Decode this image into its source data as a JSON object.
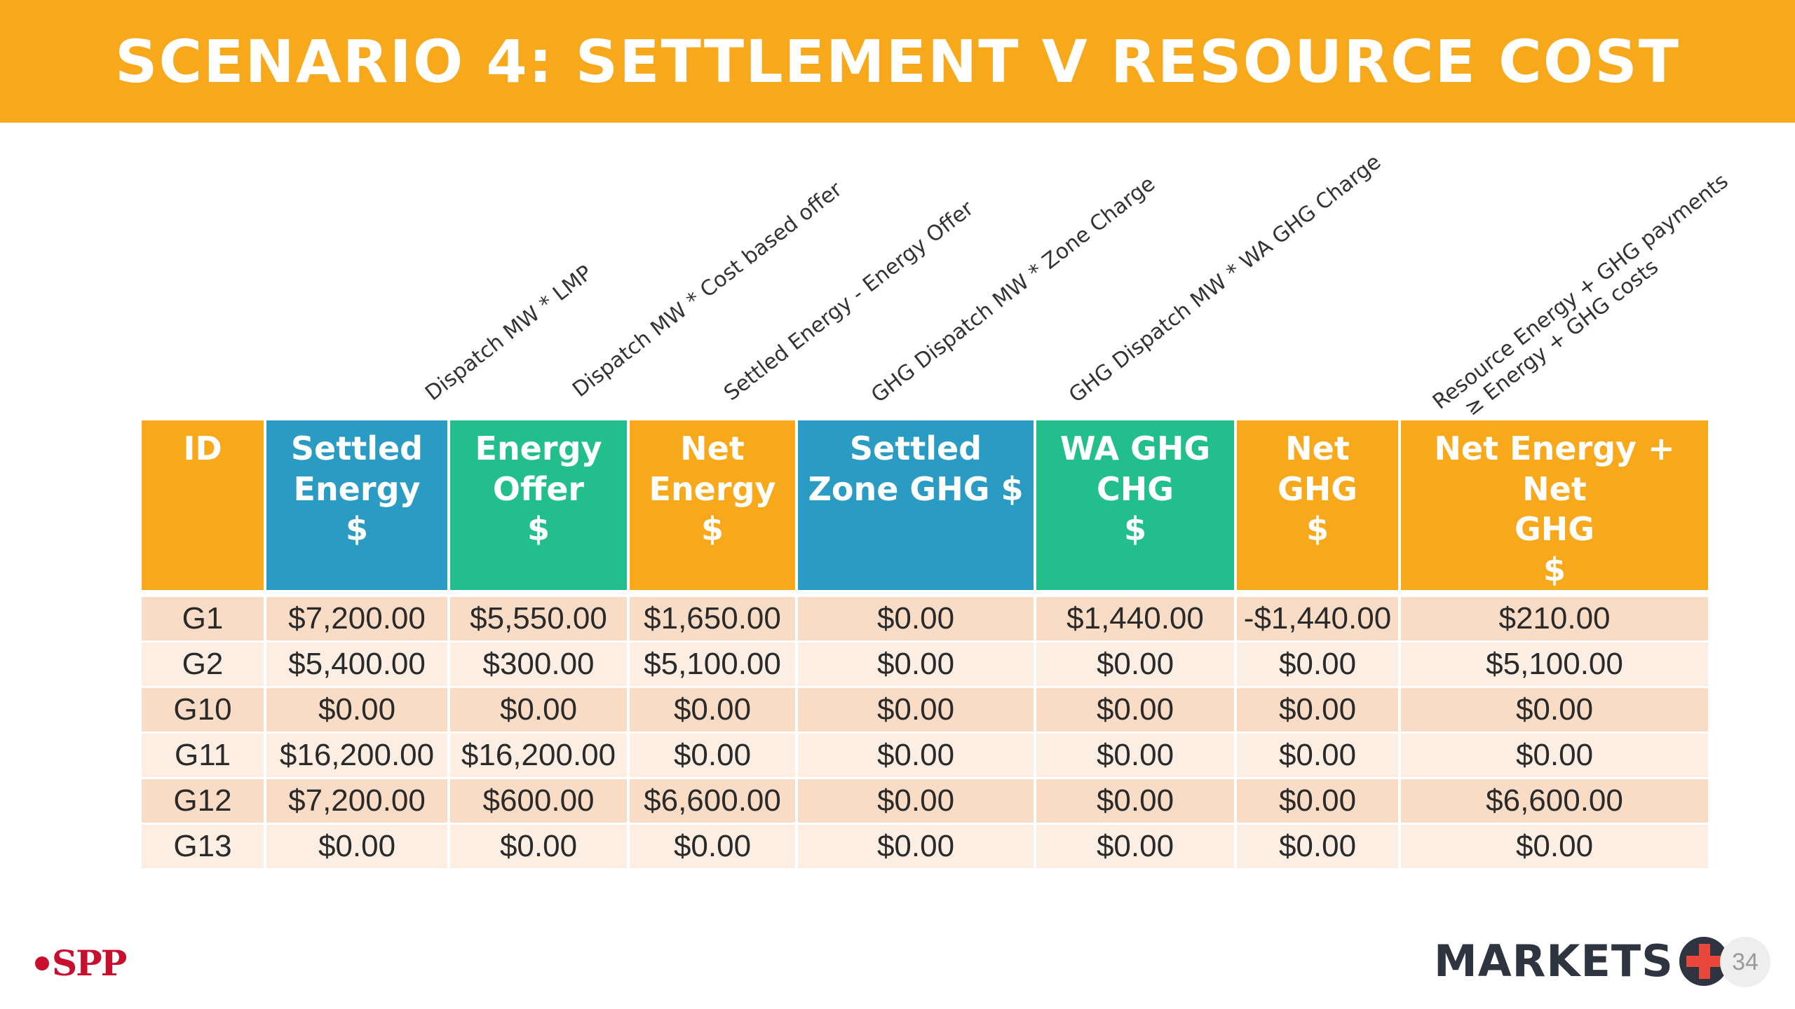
{
  "header": {
    "title": "SCENARIO 4:  SETTLEMENT V RESOURCE COST"
  },
  "formulas": {
    "settled_energy": "Dispatch MW * LMP",
    "energy_offer": "Dispatch MW * Cost based offer",
    "net_energy": "Settled Energy - Energy Offer",
    "settled_zone_ghg": "GHG Dispatch MW * Zone Charge",
    "wa_ghg_chg": "GHG Dispatch MW * WA GHG Charge",
    "net_total_line1": "Resource Energy + GHG payments",
    "net_total_line2": "≥ Energy + GHG costs"
  },
  "table": {
    "headers": [
      {
        "l1": "ID",
        "l2": "",
        "l3": "",
        "color": "#F7A81B"
      },
      {
        "l1": "Settled",
        "l2": "Energy",
        "l3": "$",
        "color": "#2A9BC2"
      },
      {
        "l1": "Energy",
        "l2": "Offer",
        "l3": "$",
        "color": "#22BF8C"
      },
      {
        "l1": "Net",
        "l2": "Energy",
        "l3": "$",
        "color": "#F7A81B"
      },
      {
        "l1": "Settled",
        "l2": "Zone GHG $",
        "l3": "",
        "color": "#2A9BC2"
      },
      {
        "l1": "WA GHG",
        "l2": "CHG",
        "l3": "$",
        "color": "#22BF8C"
      },
      {
        "l1": "Net",
        "l2": "GHG",
        "l3": "$",
        "color": "#F7A81B"
      },
      {
        "l1": "Net Energy + Net",
        "l2": "GHG",
        "l3": "$",
        "color": "#F7A81B"
      }
    ],
    "rows": [
      [
        "G1",
        "$7,200.00",
        "$5,550.00",
        "$1,650.00",
        "$0.00",
        "$1,440.00",
        "-$1,440.00",
        "$210.00"
      ],
      [
        "G2",
        "$5,400.00",
        "$300.00",
        "$5,100.00",
        "$0.00",
        "$0.00",
        "$0.00",
        "$5,100.00"
      ],
      [
        "G10",
        "$0.00",
        "$0.00",
        "$0.00",
        "$0.00",
        "$0.00",
        "$0.00",
        "$0.00"
      ],
      [
        "G11",
        "$16,200.00",
        "$16,200.00",
        "$0.00",
        "$0.00",
        "$0.00",
        "$0.00",
        "$0.00"
      ],
      [
        "G12",
        "$7,200.00",
        "$600.00",
        "$6,600.00",
        "$0.00",
        "$0.00",
        "$0.00",
        "$6,600.00"
      ],
      [
        "G13",
        "$0.00",
        "$0.00",
        "$0.00",
        "$0.00",
        "$0.00",
        "$0.00",
        "$0.00"
      ]
    ]
  },
  "footer": {
    "spp_logo": "SPP",
    "markets_logo": "MARKETS",
    "page_number": "34"
  }
}
